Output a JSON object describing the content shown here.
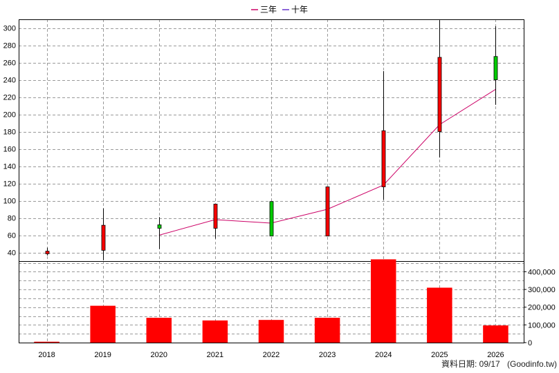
{
  "chart_data": {
    "type": "candlestick+bar",
    "legend": [
      {
        "name": "三年",
        "color": "#cc0066"
      },
      {
        "name": "十年",
        "color": "#6633cc"
      }
    ],
    "categories": [
      "2018",
      "2019",
      "2020",
      "2021",
      "2022",
      "2023",
      "2024",
      "2025",
      "2026"
    ],
    "price": {
      "ylim": [
        30,
        310
      ],
      "ticks": [
        "40",
        "60",
        "80",
        "100",
        "120",
        "140",
        "160",
        "180",
        "200",
        "220",
        "240",
        "260",
        "280",
        "300"
      ],
      "candles": [
        {
          "open": 38.5,
          "close": 41.5,
          "high": 45.5,
          "low": 36.5,
          "color": "#ff0000"
        },
        {
          "open": 42.5,
          "close": 71.5,
          "high": 91,
          "low": 31,
          "color": "#ff0000"
        },
        {
          "open": 72,
          "close": 68,
          "high": 81,
          "low": 44,
          "color": "#00cc00"
        },
        {
          "open": 68,
          "close": 96,
          "high": 96,
          "low": 56,
          "color": "#ff0000"
        },
        {
          "open": 99,
          "close": 59,
          "high": 99,
          "low": 59,
          "color": "#00cc00"
        },
        {
          "open": 59,
          "close": 116,
          "high": 116,
          "low": 59,
          "color": "#ff0000"
        },
        {
          "open": 116,
          "close": 181,
          "high": 250,
          "low": 101,
          "color": "#ff0000"
        },
        {
          "open": 180,
          "close": 266,
          "high": 309,
          "low": 150,
          "color": "#ff0000"
        },
        {
          "open": 267,
          "close": 240,
          "high": 302,
          "low": 211,
          "color": "#00cc00"
        }
      ],
      "three_year_line": [
        null,
        null,
        60,
        78,
        74,
        90,
        118,
        188,
        229
      ]
    },
    "volume": {
      "ylim": [
        0,
        460000
      ],
      "ticks": [
        "0",
        "100,000",
        "200,000",
        "300,000",
        "400,000"
      ],
      "values": [
        5000,
        208000,
        140000,
        125000,
        128000,
        140000,
        470000,
        310000,
        97000
      ],
      "color": "#ff0000"
    },
    "grid": true
  },
  "footer": {
    "date_label": "資料日期: 09/17",
    "source": "(Goodinfo.tw)"
  }
}
